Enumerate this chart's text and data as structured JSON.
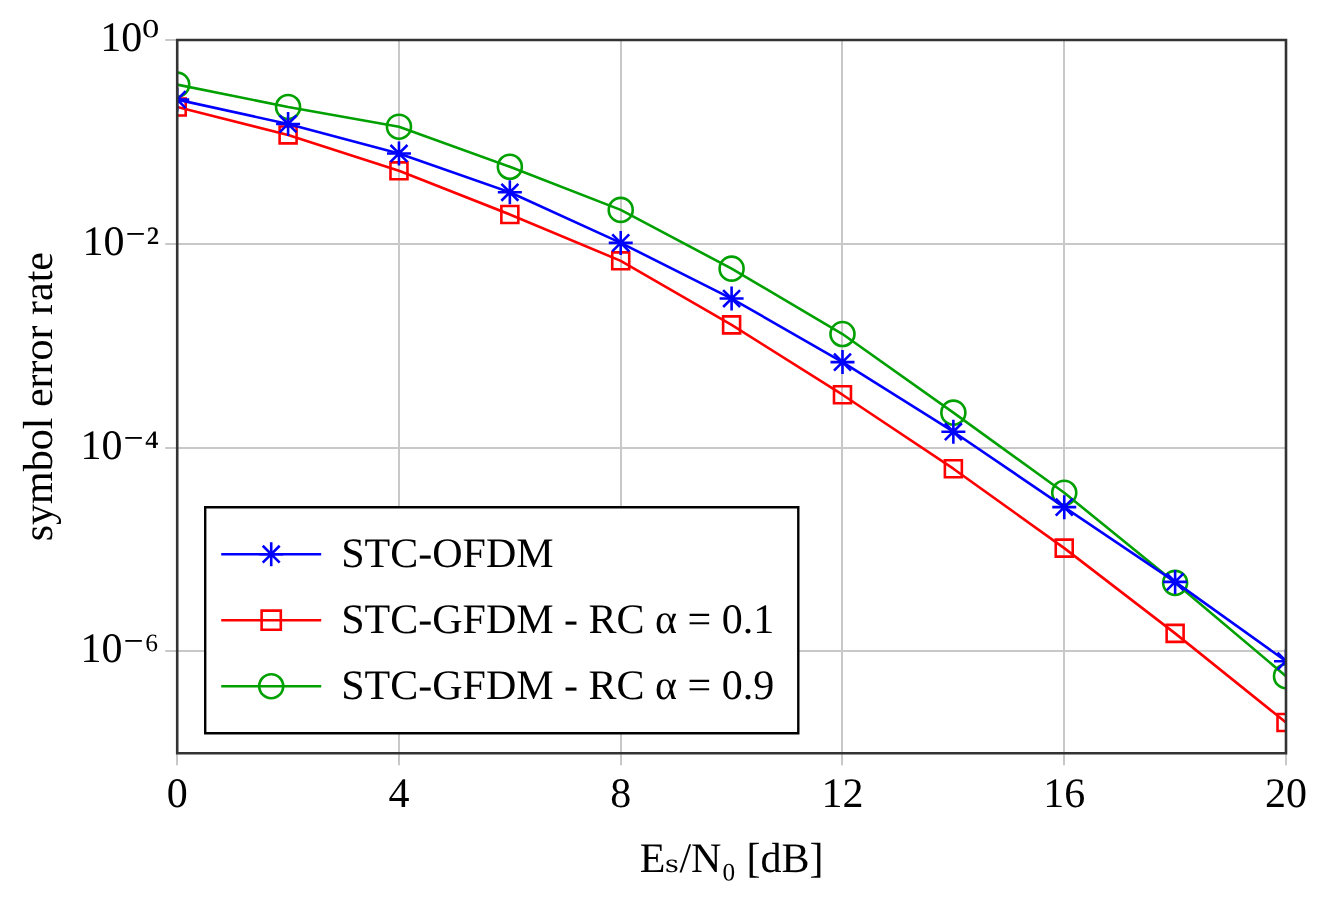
{
  "chart_data": {
    "type": "line",
    "xlabel": "Eₛ/N₀ [dB]",
    "ylabel": "symbol error rate",
    "x": [
      0,
      2,
      4,
      6,
      8,
      10,
      12,
      14,
      16,
      18,
      20
    ],
    "series": [
      {
        "name": "STC-OFDM",
        "color": "#0000ff",
        "marker": "cross",
        "values": [
          0.26,
          0.15,
          0.077,
          0.032,
          0.0102,
          0.0029,
          0.00069,
          0.000143,
          2.6e-05,
          4.8e-06,
          8e-07
        ]
      },
      {
        "name": "STC-GFDM - RC α = 0.1",
        "color": "#ff0000",
        "marker": "square",
        "values": [
          0.22,
          0.117,
          0.052,
          0.0194,
          0.0068,
          0.0016,
          0.00033,
          6.2e-05,
          1.03e-05,
          1.5e-06,
          2e-07
        ]
      },
      {
        "name": "STC-GFDM - RC α = 0.9",
        "color": "#00a000",
        "marker": "circle",
        "values": [
          0.365,
          0.22,
          0.141,
          0.057,
          0.0215,
          0.0057,
          0.0013,
          0.00022,
          3.6e-05,
          4.7e-06,
          5.7e-07
        ]
      }
    ],
    "xlim": [
      0,
      20
    ],
    "xticks": [
      0,
      4,
      8,
      12,
      16,
      20
    ],
    "ylim": [
      1e-07,
      1
    ],
    "yticks": [
      {
        "value": 1,
        "label": "10⁰"
      },
      {
        "value": 0.01,
        "label": "10⁻²"
      },
      {
        "value": 0.0001,
        "label": "10⁻⁴"
      },
      {
        "value": 1e-06,
        "label": "10⁻⁶"
      }
    ],
    "log": "y",
    "grid": true,
    "legend": "bottom left",
    "line_style": "solid"
  }
}
